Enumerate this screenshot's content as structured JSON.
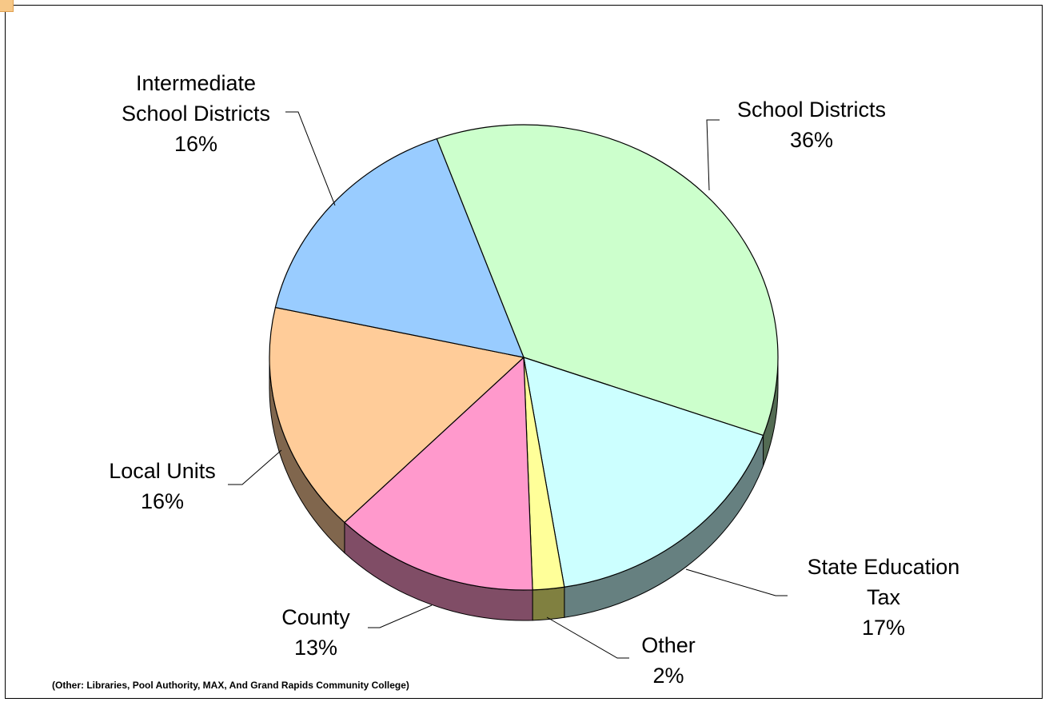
{
  "chart_data": {
    "type": "pie",
    "style": "3d-tilted",
    "slices": [
      {
        "label": "School Districts",
        "pct_label": "36%",
        "value": 36,
        "color": "#ccffcc",
        "side_color": "#536b53"
      },
      {
        "label": "State Education Tax",
        "pct_label": "17%",
        "value": 17,
        "color": "#ccffff",
        "side_color": "#668080"
      },
      {
        "label": "Other",
        "pct_label": "2%",
        "value": 2,
        "color": "#ffff99",
        "side_color": "#808040"
      },
      {
        "label": "County",
        "pct_label": "13%",
        "value": 13,
        "color": "#ff99cc",
        "side_color": "#804d66"
      },
      {
        "label": "Local Units",
        "pct_label": "16%",
        "value": 16,
        "color": "#ffcc99",
        "side_color": "#80664d"
      },
      {
        "label": "Intermediate School Districts",
        "pct_label": "16%",
        "value": 16,
        "color": "#99ccff",
        "side_color": "#4d6680"
      }
    ],
    "label_lines": {
      "school_districts": [
        "School Districts",
        "36%"
      ],
      "state_education_tax": [
        "State Education",
        "Tax",
        "17%"
      ],
      "other": [
        "Other",
        "2%"
      ],
      "county": [
        "County",
        "13%"
      ],
      "local_units": [
        "Local Units",
        "16%"
      ],
      "intermediate_school_districts": [
        "Intermediate",
        "School Districts",
        "16%"
      ]
    },
    "footnote": "(Other: Libraries, Pool Authority, MAX, And Grand Rapids Community College)",
    "legend": "none"
  }
}
